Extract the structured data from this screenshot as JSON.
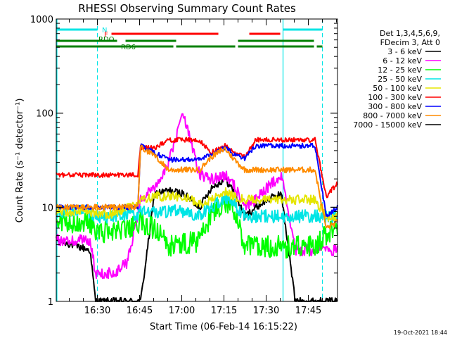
{
  "chart_data": {
    "type": "line",
    "title": "RHESSI Observing Summary Count Rates",
    "xlabel": "Start Time (06-Feb-14 16:15:22)",
    "ylabel": "Count Rate (s⁻¹ detector⁻¹)",
    "y_scale": "log",
    "ylim": [
      1,
      1000
    ],
    "xlim_minutes_after_start": [
      0,
      100
    ],
    "x_ticks": [
      "16:30",
      "16:45",
      "17:00",
      "17:15",
      "17:30",
      "17:45"
    ],
    "y_ticks": [
      "1",
      "10",
      "100",
      "1000"
    ],
    "legend_header": [
      "Det 1,3,4,5,6,9,",
      "FDecim 3, Att 0"
    ],
    "legend_position": "right",
    "timestamp": "19-Oct-2021 18:44",
    "flags": [
      {
        "label": "N",
        "color": "#00e5e5",
        "segments": [
          [
            "16:15",
            "16:30"
          ],
          [
            "17:36",
            "17:50"
          ]
        ]
      },
      {
        "label": "F",
        "color": "#ff0000",
        "segments": [
          [
            "16:35",
            "17:13"
          ],
          [
            "17:24",
            "17:35"
          ]
        ]
      },
      {
        "label": "RDO",
        "color": "#008000",
        "segments": [
          [
            "16:15",
            "16:37"
          ],
          [
            "16:40",
            "16:58"
          ],
          [
            "17:20",
            "17:47"
          ]
        ]
      },
      {
        "label": "RD6",
        "color": "#008000",
        "segments": [
          [
            "16:15",
            "16:57"
          ],
          [
            "16:58",
            "17:19"
          ],
          [
            "17:20",
            "17:47"
          ],
          [
            "17:48",
            "17:50"
          ]
        ]
      }
    ],
    "vlines": [
      {
        "time": "16:30",
        "style": "dashed",
        "color": "#00e5e5"
      },
      {
        "time": "17:36",
        "style": "solid",
        "color": "#00e5e5"
      },
      {
        "time": "17:50",
        "style": "dashed",
        "color": "#00e5e5"
      }
    ],
    "x_anchor_min": [
      0,
      12,
      14,
      20,
      25,
      29,
      30,
      35,
      40,
      45,
      51,
      55,
      60,
      63,
      67,
      71,
      75,
      80,
      85,
      92,
      96,
      100
    ],
    "series": [
      {
        "name": "3 - 6 keV",
        "color": "#000000",
        "values": [
          4.5,
          3.5,
          1.0,
          1.0,
          1.0,
          1.0,
          1.0,
          14,
          15,
          14,
          10,
          16,
          20,
          15,
          8,
          10,
          12,
          14,
          1.0,
          1.0,
          1.0,
          1.0
        ]
      },
      {
        "name": "6 - 12 keV",
        "color": "#ff00ff",
        "values": [
          4.5,
          4.5,
          2.0,
          2.0,
          2.5,
          8,
          12,
          16,
          30,
          100,
          22,
          20,
          22,
          18,
          10,
          12,
          16,
          22,
          3.5,
          3.5,
          3.5,
          3.5
        ]
      },
      {
        "name": "12 - 25 keV",
        "color": "#00ff00",
        "values": [
          7,
          7,
          5.5,
          5.5,
          6,
          7,
          7,
          6,
          4,
          4,
          4.5,
          8,
          12,
          9,
          4,
          3.8,
          3.8,
          3.8,
          3.8,
          3.8,
          5,
          6
        ]
      },
      {
        "name": "25 - 50 keV",
        "color": "#00e5e5",
        "values": [
          9,
          9,
          8,
          8,
          8.5,
          8.5,
          9,
          9,
          9,
          9,
          8,
          10,
          13,
          11,
          8,
          8,
          8,
          8,
          8,
          8,
          8,
          8
        ]
      },
      {
        "name": "50 - 100 keV",
        "color": "#e5e500",
        "values": [
          9,
          9,
          8.5,
          8.5,
          10,
          11,
          12,
          13,
          13,
          13,
          11,
          12,
          15,
          13,
          12,
          12,
          12,
          12,
          12,
          12,
          8,
          8
        ]
      },
      {
        "name": "100 - 300 keV",
        "color": "#ff0000",
        "values": [
          22,
          22,
          22,
          22,
          22,
          22,
          43,
          43,
          52,
          52,
          52,
          38,
          45,
          38,
          35,
          52,
          52,
          52,
          52,
          52,
          13,
          18
        ]
      },
      {
        "name": "300 - 800 keV",
        "color": "#0000ff",
        "values": [
          10,
          10,
          10,
          10,
          10,
          10,
          45,
          38,
          32,
          32,
          32,
          36,
          43,
          37,
          33,
          45,
          45,
          45,
          45,
          45,
          8,
          10
        ]
      },
      {
        "name": "800 - 7000 keV",
        "color": "#ff8c00",
        "values": [
          10,
          10,
          10,
          10,
          10,
          10,
          44,
          35,
          25,
          25,
          25,
          34,
          42,
          33,
          25,
          25,
          25,
          25,
          25,
          25,
          6,
          7
        ]
      },
      {
        "name": "7000 - 15000 keV",
        "color": "#000000",
        "values": [
          0,
          0,
          0,
          0,
          0,
          0,
          0,
          0,
          0,
          0,
          0,
          0,
          0,
          0,
          0,
          0,
          0,
          0,
          0,
          0,
          0,
          0
        ]
      }
    ]
  }
}
